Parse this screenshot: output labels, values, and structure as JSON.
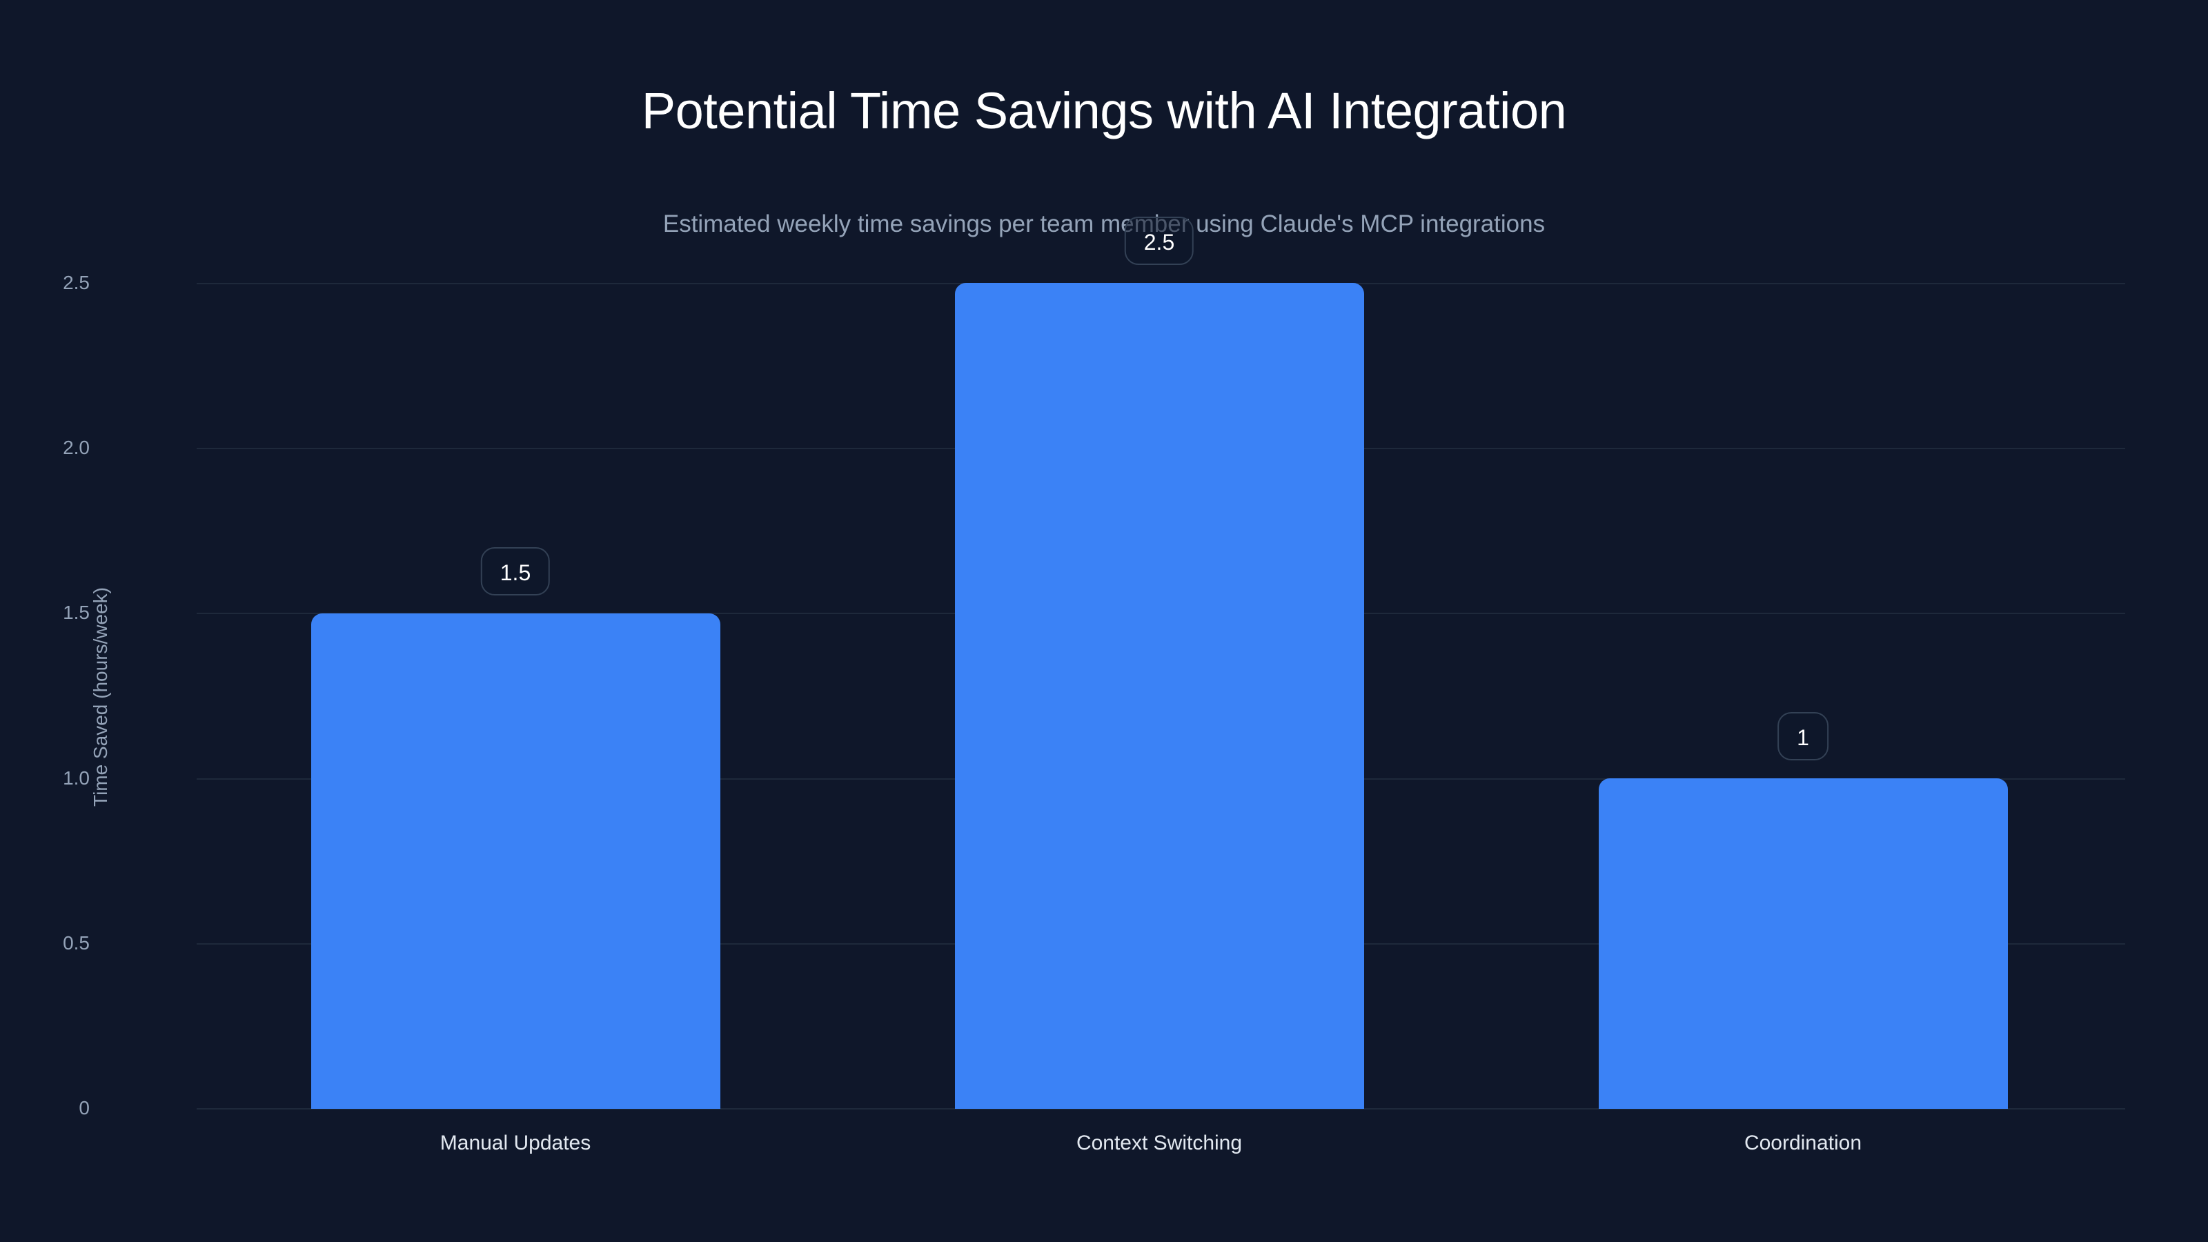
{
  "chart_data": {
    "type": "bar",
    "title": "Potential Time Savings with AI Integration",
    "subtitle": "Estimated weekly time savings per team member using Claude's MCP integrations",
    "xlabel": "",
    "ylabel": "Time Saved (hours/week)",
    "categories": [
      "Manual Updates",
      "Context Switching",
      "Coordination"
    ],
    "values": [
      1.5,
      2.5,
      1
    ],
    "value_labels": [
      "1.5",
      "2.5",
      "1"
    ],
    "ylim": [
      0,
      2.5
    ],
    "yticks": [
      "0",
      "0.5",
      "1.0",
      "1.5",
      "2.0",
      "2.5"
    ],
    "grid": true,
    "legend": null,
    "colors": {
      "bar": "#3b82f6",
      "background": "#0f172a",
      "grid": "#1e293b",
      "label_border": "#334155"
    }
  }
}
